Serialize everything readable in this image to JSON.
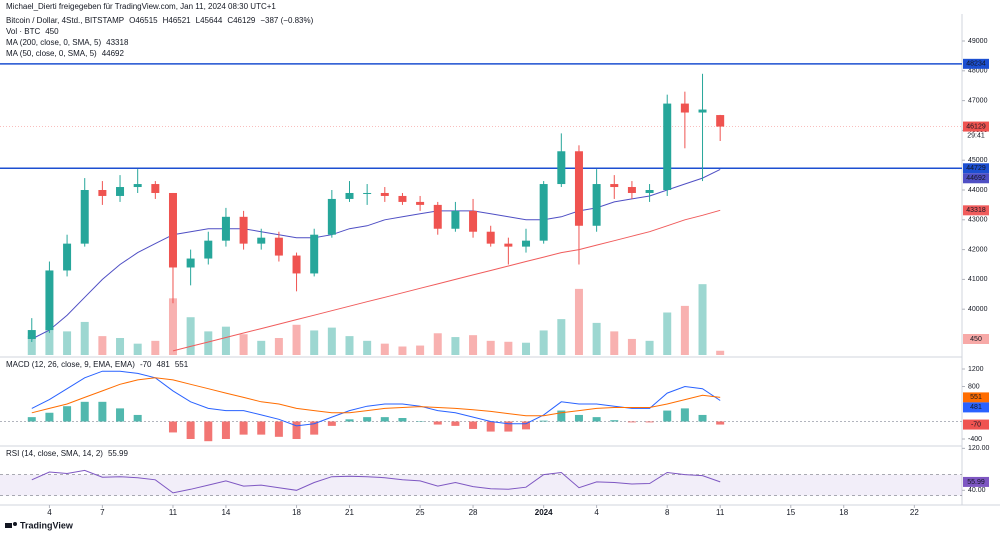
{
  "header": {
    "attribution": "Michael_Dierti freigegeben für TradingView.com, Jan 11, 2024 08:30 UTC+1",
    "footer": "TradingView"
  },
  "chart_data": [
    {
      "type": "candlestick",
      "title": "Bitcoin / Dollar, 4Std., BITSTAMP",
      "ohlc_labels": [
        "O46515",
        "H46521",
        "L45644",
        "C46129",
        "−387 (−0.83%)"
      ],
      "volume_label": "Vol · BTC",
      "countdown": "29:41",
      "x": [
        3,
        4,
        5,
        6,
        7,
        8,
        9,
        10,
        11,
        12,
        13,
        14,
        15,
        16,
        17,
        18,
        19,
        20,
        21,
        22,
        23,
        24,
        25,
        26,
        27,
        28,
        29,
        30,
        31,
        32,
        33,
        34,
        35,
        36,
        37,
        38,
        39,
        40,
        41,
        42
      ],
      "open": [
        39000,
        39300,
        41300,
        42200,
        44000,
        43800,
        44100,
        44200,
        43900,
        41400,
        41700,
        42300,
        43100,
        42200,
        42400,
        41800,
        41200,
        42500,
        43700,
        43900,
        43900,
        43800,
        43600,
        43500,
        42700,
        43300,
        42600,
        42200,
        42100,
        42300,
        44200,
        45300,
        42800,
        44200,
        44100,
        43900,
        44000,
        46900,
        46600,
        46515
      ],
      "high": [
        39700,
        41600,
        42500,
        44400,
        44300,
        44500,
        44700,
        44300,
        43900,
        42000,
        42600,
        43400,
        43300,
        42700,
        42600,
        41900,
        42700,
        44000,
        44300,
        44200,
        44100,
        43900,
        43800,
        43600,
        43600,
        43700,
        42800,
        42400,
        42700,
        44300,
        45900,
        45500,
        44700,
        44500,
        44300,
        44200,
        47200,
        47300,
        47900,
        46521
      ],
      "low": [
        38900,
        39200,
        41100,
        42100,
        43500,
        43600,
        43900,
        43700,
        40200,
        40800,
        41500,
        42100,
        42000,
        42000,
        41600,
        40600,
        41100,
        42400,
        43600,
        43500,
        43600,
        43500,
        43300,
        42500,
        42600,
        42400,
        42100,
        41500,
        41900,
        42200,
        44100,
        41500,
        42600,
        43700,
        43700,
        43600,
        43800,
        45400,
        44300,
        45644
      ],
      "close": [
        39300,
        41300,
        42200,
        44000,
        43800,
        44100,
        44200,
        43900,
        41400,
        41700,
        42300,
        43100,
        42200,
        42400,
        41800,
        41200,
        42500,
        43700,
        43900,
        43900,
        43800,
        43600,
        43500,
        42700,
        43300,
        42600,
        42200,
        42100,
        42300,
        44200,
        45300,
        42800,
        44200,
        44100,
        43900,
        44000,
        46900,
        46600,
        46700,
        46129
      ],
      "volume": [
        2000,
        3000,
        2500,
        3500,
        2000,
        1800,
        1200,
        1500,
        6000,
        4000,
        2500,
        3000,
        2200,
        1500,
        1800,
        3200,
        2600,
        2900,
        2000,
        1500,
        1200,
        900,
        1000,
        2300,
        1900,
        2100,
        1500,
        1400,
        1300,
        2600,
        3800,
        7000,
        3400,
        2500,
        1700,
        1500,
        4500,
        5200,
        7500,
        450
      ],
      "volume_lim": [
        0,
        9000
      ],
      "series": [
        {
          "name": "MA (200, close, 0, SMA, 5)",
          "color": "#f05c5c",
          "values": [
            null,
            null,
            null,
            null,
            null,
            null,
            null,
            null,
            38600,
            38750,
            38900,
            39050,
            39200,
            39350,
            39500,
            39650,
            39800,
            39950,
            40100,
            40250,
            40400,
            40550,
            40700,
            40850,
            41000,
            41150,
            41300,
            41450,
            41600,
            41750,
            41900,
            42000,
            42150,
            42300,
            42450,
            42600,
            42800,
            43000,
            43150,
            43318
          ]
        },
        {
          "name": "MA (50, close, 0, SMA, 5)",
          "color": "#4f4fc4",
          "values": [
            39000,
            39300,
            39800,
            40400,
            41000,
            41500,
            41900,
            42200,
            42500,
            42600,
            42700,
            42700,
            42700,
            42600,
            42500,
            42400,
            42400,
            42500,
            42700,
            42800,
            43000,
            43100,
            43200,
            43300,
            43300,
            43300,
            43200,
            43100,
            43000,
            43000,
            43100,
            43300,
            43400,
            43600,
            43700,
            43800,
            44000,
            44200,
            44400,
            44692
          ]
        }
      ],
      "levels": [
        {
          "value": 48234,
          "color": "#1c4fd1"
        },
        {
          "value": 44729,
          "color": "#1c4fd1"
        }
      ],
      "up_color": "#26a69a",
      "down_color": "#ef5350",
      "ylim": [
        38463,
        49705
      ],
      "yticks": [
        40000,
        41000,
        42000,
        43000,
        44000,
        45000,
        46000,
        47000,
        48000,
        49000
      ],
      "xlim": [
        1.2,
        55.7
      ],
      "xticks": [
        4,
        7,
        11,
        14,
        18,
        21,
        25,
        28,
        {
          "value": 32,
          "label": "2024"
        },
        {
          "value": 35,
          "label": "4"
        },
        {
          "value": 39,
          "label": "8"
        },
        {
          "value": 42,
          "label": "11"
        },
        {
          "value": 46,
          "label": "15"
        },
        {
          "value": 49,
          "label": "18"
        },
        {
          "value": 53,
          "label": "22"
        }
      ]
    },
    {
      "type": "macd",
      "title": "MACD (12, 26, close, 9, EMA, EMA)",
      "histogram": [
        100,
        200,
        350,
        450,
        450,
        300,
        150,
        0,
        -250,
        -400,
        -450,
        -400,
        -300,
        -300,
        -350,
        -400,
        -300,
        -100,
        50,
        100,
        100,
        80,
        10,
        -70,
        -100,
        -170,
        -230,
        -230,
        -180,
        20,
        250,
        150,
        100,
        30,
        -20,
        -20,
        250,
        300,
        150,
        -70
      ],
      "histogram_colors": [
        "#26a69a",
        "#ef5350"
      ],
      "macd": {
        "color": "#2962ff",
        "values": [
          300,
          500,
          750,
          1000,
          1150,
          1150,
          1100,
          1000,
          700,
          450,
          300,
          250,
          250,
          150,
          50,
          -100,
          -50,
          100,
          250,
          350,
          400,
          400,
          350,
          250,
          200,
          100,
          0,
          -50,
          -50,
          150,
          450,
          400,
          400,
          350,
          300,
          300,
          650,
          800,
          750,
          481
        ]
      },
      "signal": {
        "color": "#ff6d00",
        "values": [
          200,
          300,
          400,
          550,
          700,
          850,
          950,
          1000,
          950,
          850,
          750,
          650,
          550,
          450,
          400,
          300,
          250,
          200,
          200,
          250,
          300,
          320,
          340,
          320,
          300,
          270,
          230,
          180,
          130,
          130,
          200,
          250,
          300,
          320,
          320,
          320,
          400,
          500,
          600,
          551
        ]
      },
      "ylim": [
        -560,
        1406
      ],
      "yticks": [
        -400,
        800,
        1200
      ]
    },
    {
      "type": "rsi",
      "title": "RSI (14, close, SMA, 14, 2)",
      "color": "#7e57c2",
      "values": [
        60,
        75,
        72,
        78,
        65,
        66,
        64,
        60,
        35,
        42,
        50,
        58,
        48,
        50,
        45,
        40,
        55,
        66,
        67,
        66,
        64,
        60,
        58,
        48,
        55,
        47,
        43,
        42,
        46,
        70,
        74,
        45,
        56,
        55,
        52,
        53,
        74,
        70,
        68,
        55.99
      ],
      "bands": [
        30,
        70
      ],
      "ylim": [
        12,
        122.6
      ],
      "yticks": [
        {
          "value": 40,
          "label": "40.00"
        },
        {
          "value": 120,
          "label": "120.00"
        }
      ]
    }
  ]
}
